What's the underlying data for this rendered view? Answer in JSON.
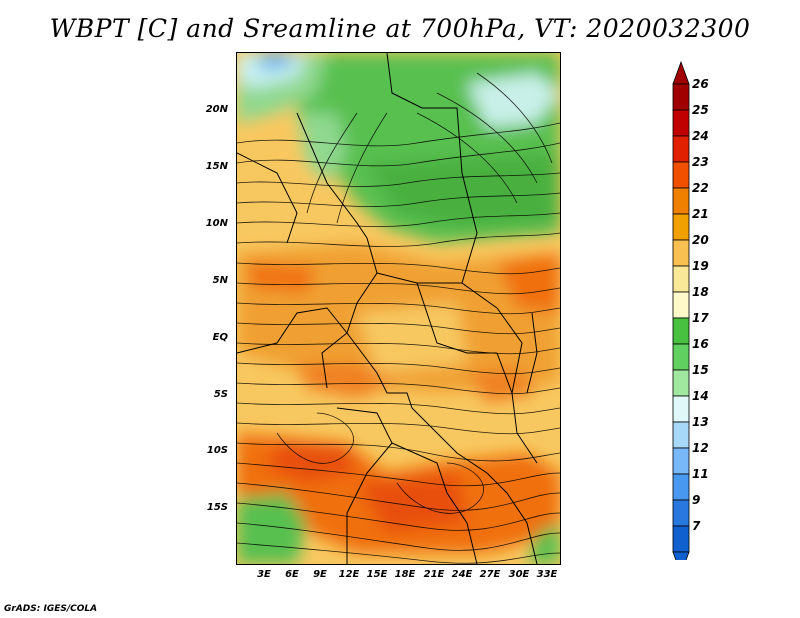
{
  "title": "WBPT [C] and Sreamline at 700hPa, VT: 2020032300",
  "credit": "GrADS: IGES/COLA",
  "map": {
    "lat_labels": [
      "20N",
      "15N",
      "10N",
      "5N",
      "EQ",
      "5S",
      "10S",
      "15S"
    ],
    "lon_labels": [
      "3E",
      "6E",
      "9E",
      "12E",
      "15E",
      "18E",
      "21E",
      "24E",
      "27E",
      "30E",
      "33E"
    ]
  },
  "colorbar": {
    "labels": [
      "26",
      "25",
      "24",
      "23",
      "22",
      "21",
      "20",
      "19",
      "18",
      "17",
      "16",
      "15",
      "14",
      "13",
      "12",
      "11",
      "9",
      "7"
    ],
    "colors": [
      "#a00000",
      "#c00000",
      "#e02000",
      "#f05000",
      "#f08000",
      "#f0a000",
      "#f8c050",
      "#f8e898",
      "#fff8c8",
      "#48c040",
      "#60d060",
      "#a0e8a0",
      "#e0f8f8",
      "#a8d8f8",
      "#78b8f8",
      "#4898f0",
      "#2878e0",
      "#1060d0"
    ]
  }
}
